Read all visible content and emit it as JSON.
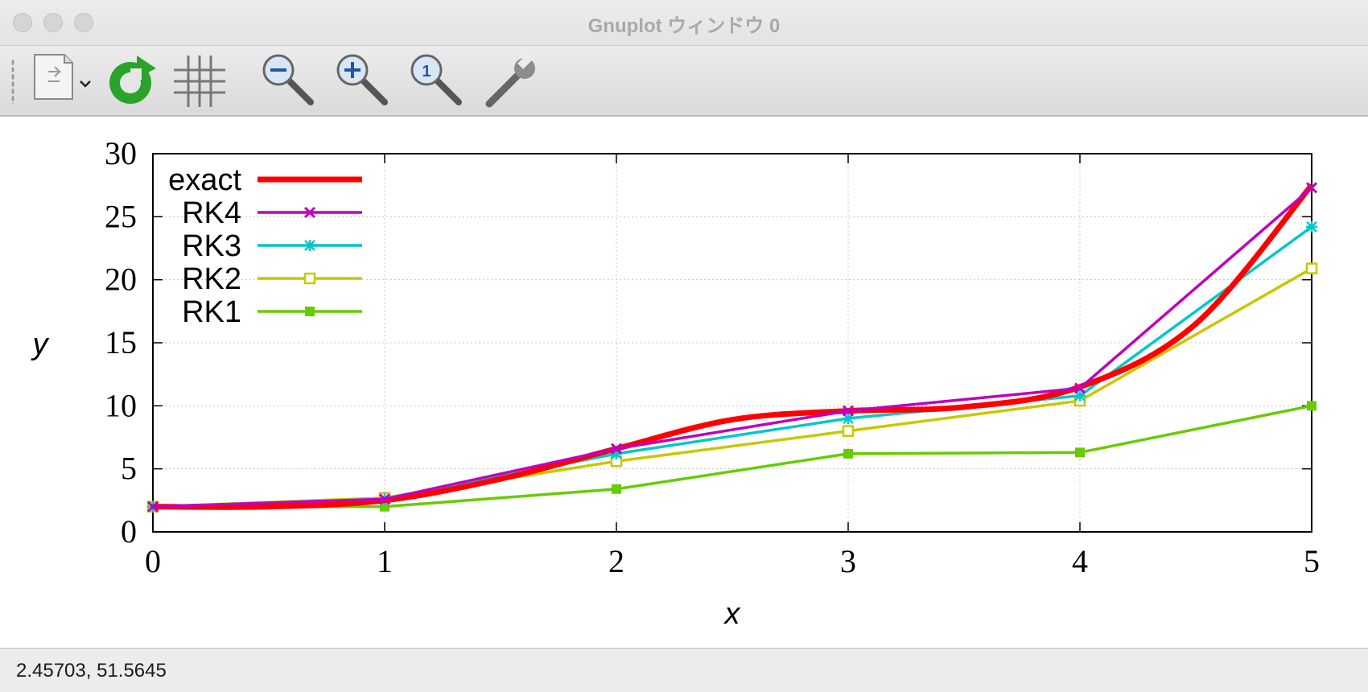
{
  "window": {
    "title": "Gnuplot ウィンドウ 0"
  },
  "toolbar": {
    "items": [
      {
        "name": "export-document-icon"
      },
      {
        "name": "replot-icon"
      },
      {
        "name": "grid-icon"
      },
      {
        "name": "zoom-out-icon"
      },
      {
        "name": "zoom-in-icon"
      },
      {
        "name": "zoom-reset-icon"
      },
      {
        "name": "settings-wrench-icon"
      }
    ]
  },
  "status": {
    "coordinates": "2.45703,  51.5645"
  },
  "chart_data": {
    "type": "line",
    "title": "",
    "xlabel": "x",
    "ylabel": "y",
    "xlim": [
      0,
      5
    ],
    "ylim": [
      0,
      30
    ],
    "xticks": [
      0,
      1,
      2,
      3,
      4,
      5
    ],
    "yticks": [
      0,
      5,
      10,
      15,
      20,
      25,
      30
    ],
    "grid": true,
    "legend_position": "top-left",
    "series": [
      {
        "name": "exact",
        "color": "#ff0000",
        "marker": "none",
        "smooth": true,
        "x": [
          0,
          0.5,
          1,
          1.5,
          2,
          2.5,
          3,
          3.5,
          4,
          4.5,
          5
        ],
        "y": [
          2.0,
          2.0,
          2.5,
          4.2,
          6.6,
          8.9,
          9.6,
          9.9,
          11.5,
          16.5,
          27.5
        ]
      },
      {
        "name": "RK4",
        "color": "#c000c0",
        "marker": "x",
        "x": [
          0,
          1,
          2,
          3,
          4,
          5
        ],
        "y": [
          2.0,
          2.6,
          6.6,
          9.6,
          11.4,
          27.3
        ]
      },
      {
        "name": "RK3",
        "color": "#00c8c8",
        "marker": "asterisk",
        "x": [
          0,
          1,
          2,
          3,
          4,
          5
        ],
        "y": [
          2.0,
          2.6,
          6.2,
          9.0,
          10.8,
          24.2
        ]
      },
      {
        "name": "RK2",
        "color": "#c8c800",
        "marker": "open-square",
        "x": [
          0,
          1,
          2,
          3,
          4,
          5
        ],
        "y": [
          2.0,
          2.7,
          5.6,
          8.0,
          10.4,
          20.9
        ]
      },
      {
        "name": "RK1",
        "color": "#66cc00",
        "marker": "filled-square",
        "x": [
          0,
          1,
          2,
          3,
          4,
          5
        ],
        "y": [
          2.0,
          2.0,
          3.4,
          6.2,
          6.3,
          10.0
        ]
      }
    ]
  }
}
